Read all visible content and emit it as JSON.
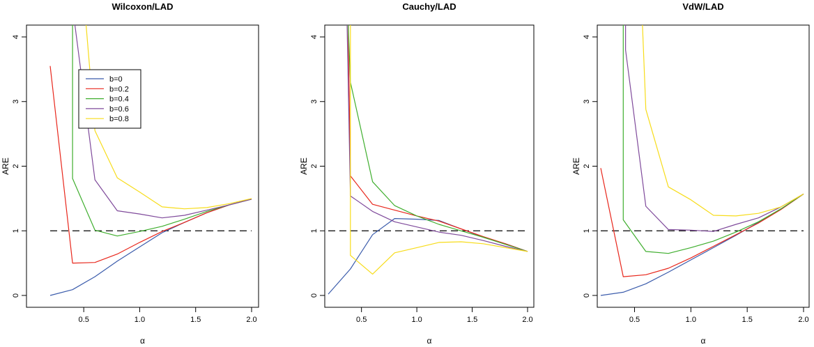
{
  "chart_data": [
    {
      "type": "line",
      "title": "Wilcoxon/LAD",
      "xlabel": "α",
      "ylabel": "ARE",
      "xlim": [
        0.2,
        2.0
      ],
      "ylim": [
        0,
        4
      ],
      "xticks": [
        "0.5",
        "1.0",
        "1.5",
        "2.0"
      ],
      "yticks": [
        "0",
        "1",
        "2",
        "3",
        "4"
      ],
      "reference_line": {
        "y": 1,
        "style": "dashed",
        "color": "#000000"
      },
      "legend": {
        "placement": "upper-left",
        "entries": [
          "b=0",
          "b=0.2",
          "b=0.4",
          "b=0.6",
          "b=0.8"
        ]
      },
      "series": [
        {
          "name": "b=0",
          "color": "#3a5bab",
          "x": [
            0.2,
            0.4,
            0.6,
            0.8,
            1.0,
            1.2,
            1.4,
            1.6,
            1.8,
            2.0
          ],
          "y": [
            0.0,
            0.09,
            0.29,
            0.53,
            0.75,
            0.97,
            1.13,
            1.28,
            1.4,
            1.49
          ]
        },
        {
          "name": "b=0.2",
          "color": "#e8261b",
          "x": [
            0.2,
            0.4,
            0.6,
            0.8,
            1.0,
            1.2,
            1.4,
            1.6,
            1.8,
            2.0
          ],
          "y": [
            3.55,
            0.5,
            0.51,
            0.64,
            0.82,
            0.99,
            1.13,
            1.28,
            1.4,
            1.49
          ]
        },
        {
          "name": "b=0.4",
          "color": "#3fae2e",
          "x": [
            0.4,
            0.4,
            0.6,
            0.8,
            1.0,
            1.2,
            1.4,
            1.6,
            1.8,
            2.0
          ],
          "y": [
            4.2,
            1.81,
            1.01,
            0.92,
            0.99,
            1.07,
            1.18,
            1.3,
            1.4,
            1.49
          ]
        },
        {
          "name": "b=0.6",
          "color": "#7f4a9b",
          "x": [
            0.42,
            0.6,
            0.8,
            1.0,
            1.2,
            1.4,
            1.6,
            1.8,
            2.0
          ],
          "y": [
            4.2,
            1.79,
            1.31,
            1.26,
            1.2,
            1.24,
            1.32,
            1.4,
            1.49
          ]
        },
        {
          "name": "b=0.8",
          "color": "#f7dc1a",
          "x": [
            0.52,
            0.6,
            0.8,
            1.0,
            1.2,
            1.4,
            1.6,
            1.8,
            2.0
          ],
          "y": [
            4.2,
            2.55,
            1.82,
            1.6,
            1.37,
            1.34,
            1.36,
            1.42,
            1.5
          ]
        }
      ]
    },
    {
      "type": "line",
      "title": "Cauchy/LAD",
      "xlabel": "α",
      "ylabel": "ARE",
      "xlim": [
        0.2,
        2.0
      ],
      "ylim": [
        0,
        4
      ],
      "xticks": [
        "0.5",
        "1.0",
        "1.5",
        "2.0"
      ],
      "yticks": [
        "0",
        "1",
        "2",
        "3",
        "4"
      ],
      "reference_line": {
        "y": 1,
        "style": "dashed",
        "color": "#000000"
      },
      "series": [
        {
          "name": "b=0",
          "color": "#3a5bab",
          "x": [
            0.2,
            0.4,
            0.6,
            0.8,
            1.0,
            1.2,
            1.4,
            1.6,
            1.8,
            2.0
          ],
          "y": [
            0.02,
            0.41,
            0.94,
            1.19,
            1.18,
            1.16,
            1.03,
            0.9,
            0.8,
            0.68
          ]
        },
        {
          "name": "b=0.2",
          "color": "#e8261b",
          "x": [
            0.38,
            0.4,
            0.6,
            0.8,
            1.0,
            1.2,
            1.4,
            1.6,
            1.8,
            2.0
          ],
          "y": [
            4.2,
            1.85,
            1.41,
            1.32,
            1.23,
            1.15,
            1.03,
            0.91,
            0.8,
            0.68
          ]
        },
        {
          "name": "b=0.4",
          "color": "#3fae2e",
          "x": [
            0.38,
            0.4,
            0.6,
            0.8,
            1.0,
            1.2,
            1.4,
            1.6,
            1.8,
            2.0
          ],
          "y": [
            4.2,
            3.3,
            1.76,
            1.39,
            1.23,
            1.1,
            1.0,
            0.9,
            0.79,
            0.68
          ]
        },
        {
          "name": "b=0.6",
          "color": "#7f4a9b",
          "x": [
            0.37,
            0.4,
            0.6,
            0.8,
            1.0,
            1.2,
            1.4,
            1.6,
            1.8,
            2.0
          ],
          "y": [
            4.2,
            1.54,
            1.3,
            1.14,
            1.06,
            0.98,
            0.93,
            0.85,
            0.76,
            0.68
          ]
        },
        {
          "name": "b=0.8",
          "color": "#f7dc1a",
          "x": [
            0.4,
            0.4,
            0.6,
            0.8,
            1.0,
            1.2,
            1.4,
            1.6,
            1.8,
            2.0
          ],
          "y": [
            4.2,
            0.62,
            0.33,
            0.66,
            0.74,
            0.82,
            0.83,
            0.8,
            0.74,
            0.68
          ]
        }
      ]
    },
    {
      "type": "line",
      "title": "VdW/LAD",
      "xlabel": "α",
      "ylabel": "ARE",
      "xlim": [
        0.2,
        2.0
      ],
      "ylim": [
        0,
        4
      ],
      "xticks": [
        "0.5",
        "1.0",
        "1.5",
        "2.0"
      ],
      "yticks": [
        "0",
        "1",
        "2",
        "3",
        "4"
      ],
      "reference_line": {
        "y": 1,
        "style": "dashed",
        "color": "#000000"
      },
      "series": [
        {
          "name": "b=0",
          "color": "#3a5bab",
          "x": [
            0.2,
            0.4,
            0.6,
            0.8,
            1.0,
            1.2,
            1.4,
            1.6,
            1.8,
            2.0
          ],
          "y": [
            0.0,
            0.05,
            0.18,
            0.36,
            0.55,
            0.74,
            0.93,
            1.13,
            1.34,
            1.57
          ]
        },
        {
          "name": "b=0.2",
          "color": "#e8261b",
          "x": [
            0.2,
            0.4,
            0.6,
            0.8,
            1.0,
            1.2,
            1.4,
            1.6,
            1.8,
            2.0
          ],
          "y": [
            1.97,
            0.29,
            0.32,
            0.42,
            0.58,
            0.76,
            0.94,
            1.12,
            1.33,
            1.57
          ]
        },
        {
          "name": "b=0.4",
          "color": "#3fae2e",
          "x": [
            0.4,
            0.4,
            0.6,
            0.8,
            1.0,
            1.2,
            1.4,
            1.6,
            1.8,
            2.0
          ],
          "y": [
            4.2,
            1.17,
            0.68,
            0.65,
            0.74,
            0.84,
            0.98,
            1.14,
            1.34,
            1.57
          ]
        },
        {
          "name": "b=0.6",
          "color": "#7f4a9b",
          "x": [
            0.42,
            0.42,
            0.6,
            0.8,
            1.0,
            1.2,
            1.4,
            1.6,
            1.8,
            2.0
          ],
          "y": [
            4.2,
            3.8,
            1.38,
            1.02,
            1.01,
            0.99,
            1.1,
            1.2,
            1.37,
            1.57
          ]
        },
        {
          "name": "b=0.8",
          "color": "#f7dc1a",
          "x": [
            0.57,
            0.6,
            0.8,
            1.0,
            1.2,
            1.4,
            1.6,
            1.8,
            2.0
          ],
          "y": [
            4.2,
            2.88,
            1.68,
            1.48,
            1.24,
            1.23,
            1.27,
            1.37,
            1.57
          ]
        }
      ]
    }
  ]
}
